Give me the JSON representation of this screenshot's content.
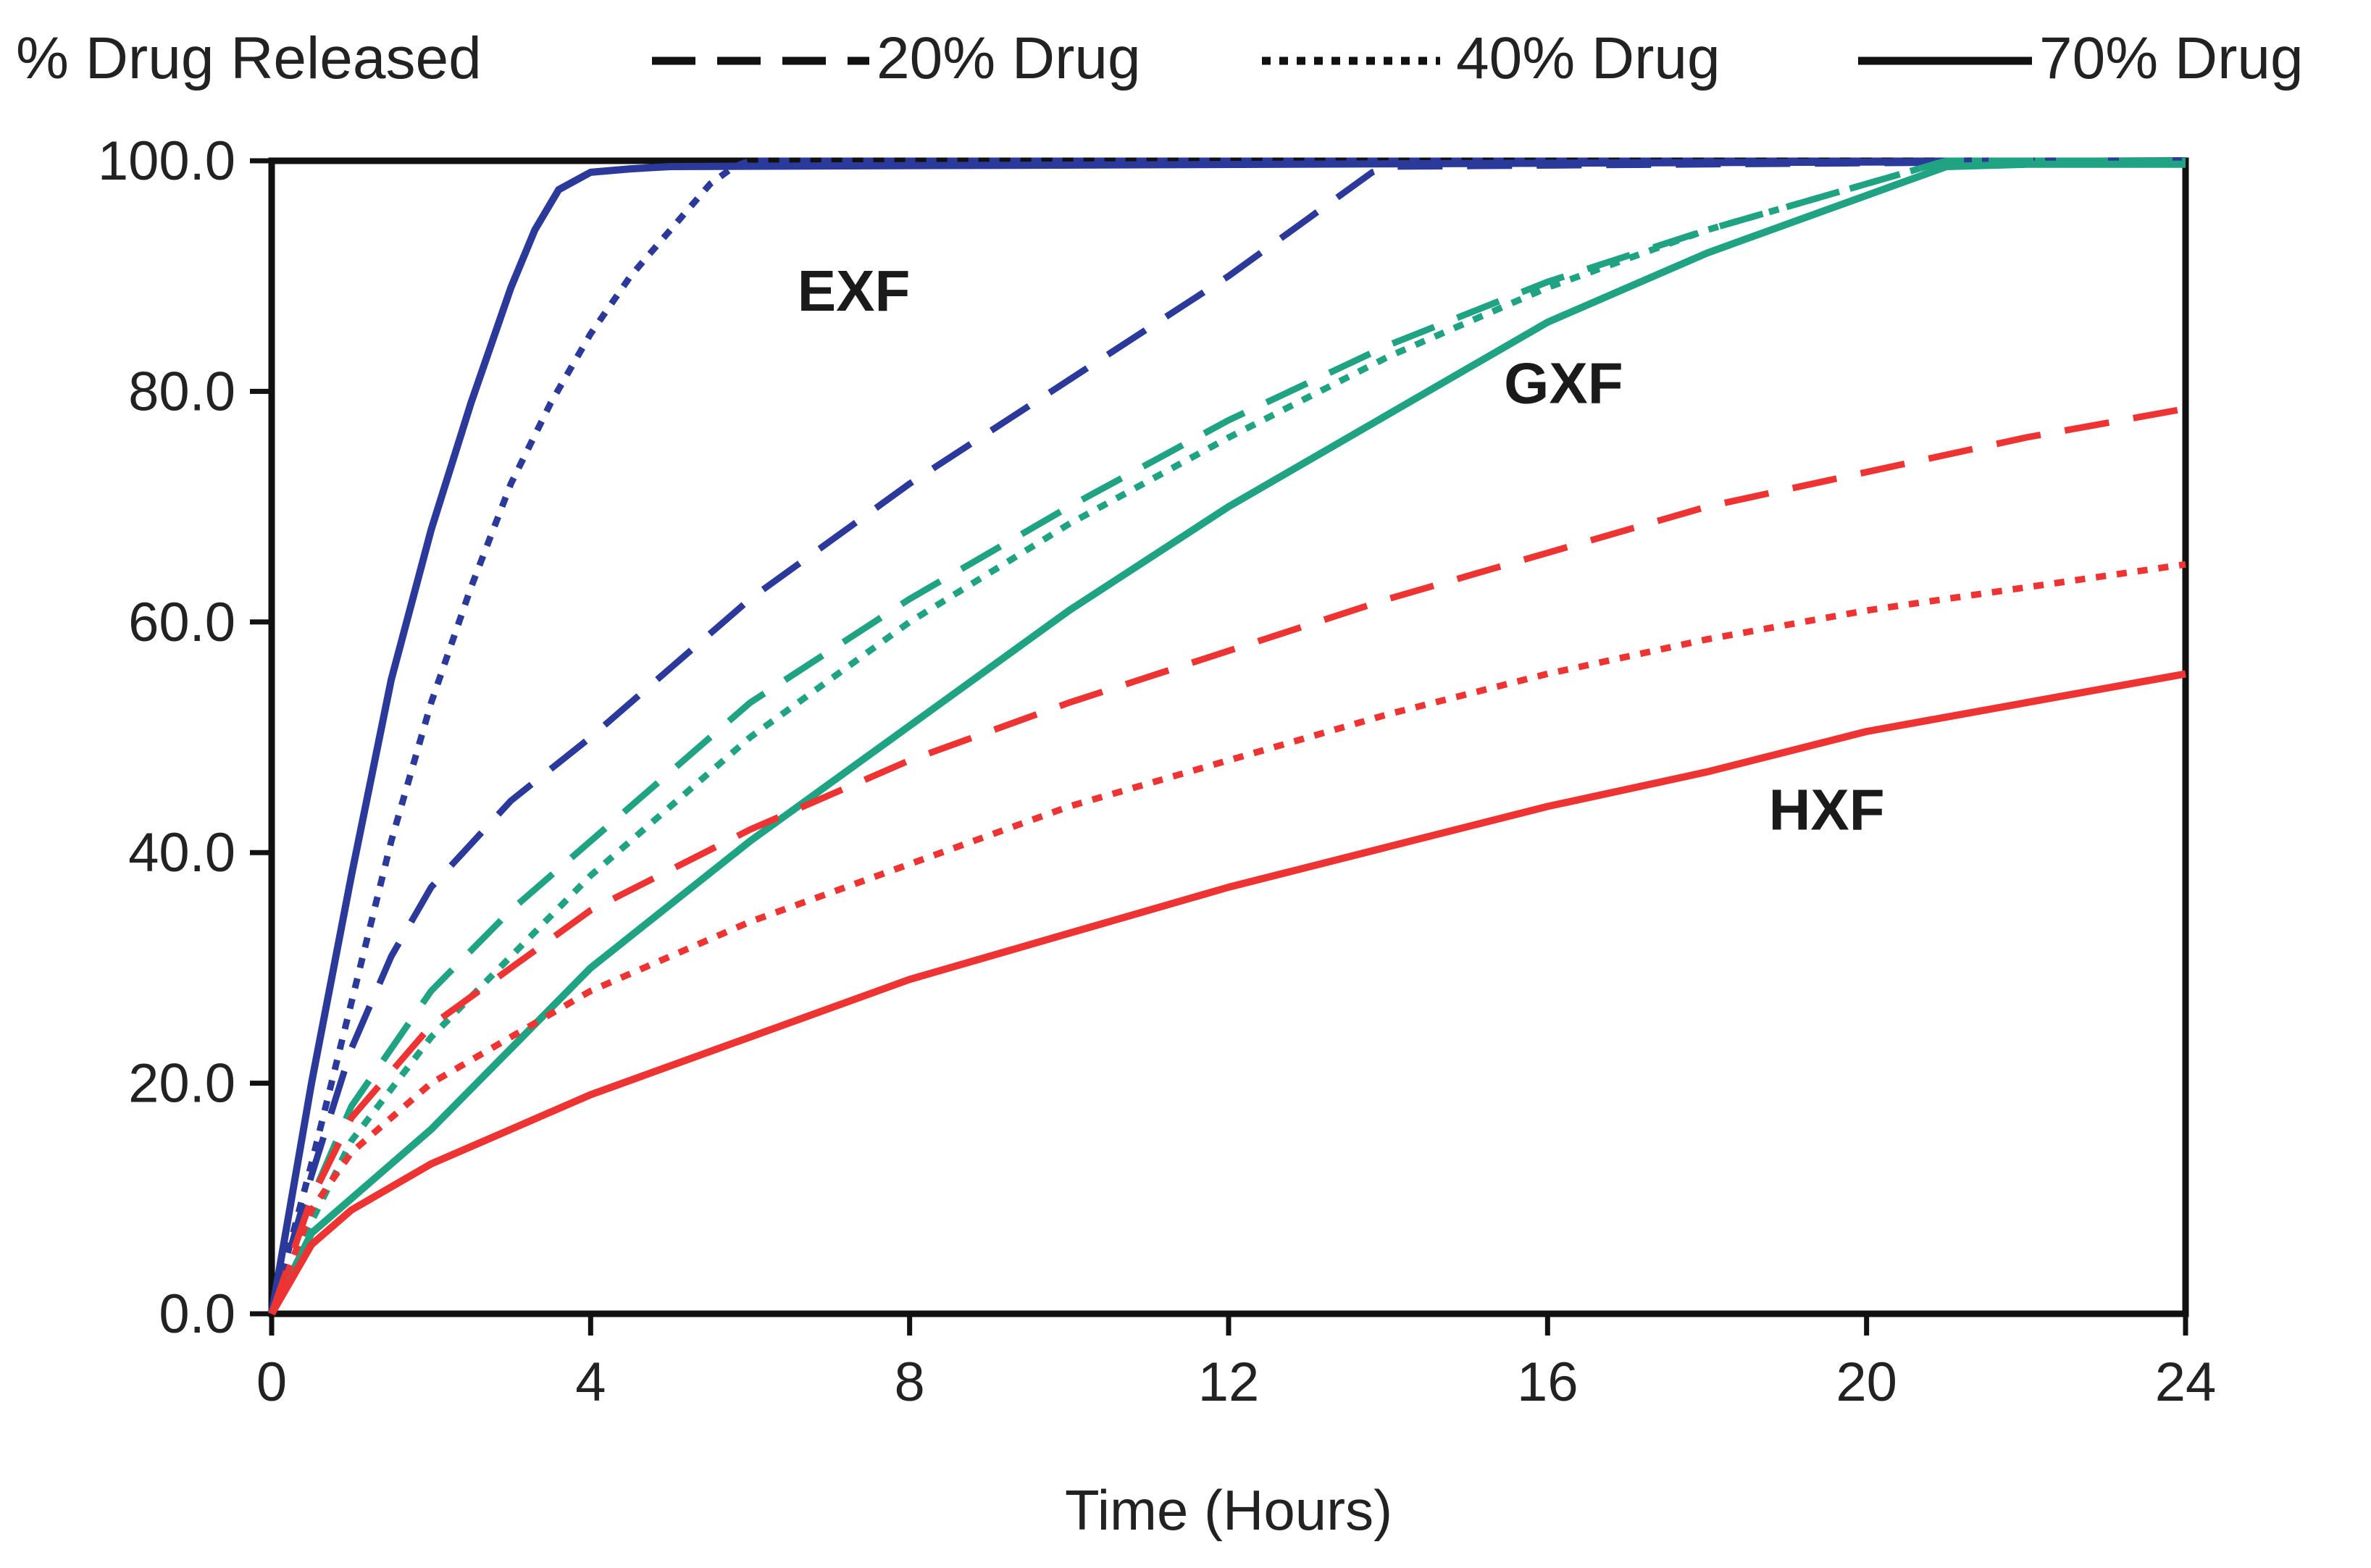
{
  "chart_data": {
    "type": "line",
    "title": "",
    "ylabel": "% Drug Released",
    "xlabel": "Time (Hours)",
    "xlim": [
      0,
      24
    ],
    "ylim": [
      0,
      100
    ],
    "xticks": [
      0,
      4,
      8,
      12,
      16,
      20,
      24
    ],
    "xtick_labels": [
      "0",
      "4",
      "8",
      "12",
      "16",
      "20",
      "24"
    ],
    "yticks": [
      0,
      20,
      40,
      60,
      80,
      100
    ],
    "ytick_labels": [
      "0.0",
      "20.0",
      "40.0",
      "60.0",
      "80.0",
      "100.0"
    ],
    "grid": false,
    "legend": [
      {
        "label": "20% Drug",
        "style": "dashed"
      },
      {
        "label": "40% Drug",
        "style": "dotted"
      },
      {
        "label": "70% Drug",
        "style": "solid"
      }
    ],
    "annotations": [
      {
        "text": "EXF",
        "x": 7.3,
        "y": 87
      },
      {
        "text": "GXF",
        "x": 16.2,
        "y": 79
      },
      {
        "text": "HXF",
        "x": 19.5,
        "y": 42
      }
    ],
    "series": [
      {
        "name": "EXF 20% Drug",
        "group": "EXF",
        "style": "dashed",
        "color": "#2b3a9a",
        "x": [
          0,
          0.5,
          1,
          1.5,
          2,
          3,
          4,
          5,
          6,
          7,
          8,
          9,
          10,
          11,
          12,
          13,
          13.8,
          14,
          24
        ],
        "y": [
          0,
          12,
          23,
          31,
          37,
          44.5,
          50,
          56,
          62,
          67,
          72,
          76.5,
          81,
          85.5,
          90,
          95,
          99,
          99.5,
          100
        ]
      },
      {
        "name": "EXF 40% Drug",
        "group": "EXF",
        "style": "dotted",
        "color": "#2b3a9a",
        "x": [
          0,
          0.5,
          1,
          1.5,
          2,
          2.5,
          3,
          3.5,
          4,
          4.5,
          5,
          5.5,
          5.8,
          6,
          24
        ],
        "y": [
          0,
          13,
          27,
          41,
          53,
          63,
          72,
          79,
          85,
          90,
          94,
          98,
          99.5,
          100,
          100
        ]
      },
      {
        "name": "EXF 70% Drug",
        "group": "EXF",
        "style": "solid",
        "color": "#2b3a9a",
        "x": [
          0,
          0.5,
          1,
          1.5,
          2,
          2.5,
          3,
          3.3,
          3.6,
          4,
          4.5,
          5,
          24
        ],
        "y": [
          0,
          20,
          38,
          55,
          68,
          79,
          89,
          94,
          97.5,
          99,
          99.3,
          99.5,
          100
        ]
      },
      {
        "name": "GXF 20% Drug",
        "group": "GXF",
        "style": "dashed",
        "color": "#1fa382",
        "x": [
          0,
          0.5,
          1,
          2,
          3,
          4,
          6,
          8,
          10,
          12,
          14,
          16,
          18,
          20,
          21,
          22,
          24
        ],
        "y": [
          0,
          10,
          18,
          28,
          35,
          41,
          53,
          62,
          70,
          77.5,
          84,
          89.5,
          94,
          98,
          100,
          100,
          100
        ]
      },
      {
        "name": "GXF 40% Drug",
        "group": "GXF",
        "style": "dotted",
        "color": "#1fa382",
        "x": [
          0,
          0.5,
          1,
          2,
          3,
          4,
          6,
          8,
          10,
          12,
          14,
          16,
          18,
          20,
          21,
          22,
          24
        ],
        "y": [
          0,
          8,
          15,
          24,
          31,
          38,
          50,
          60,
          68.5,
          76,
          83,
          89,
          94,
          98,
          100,
          100,
          100
        ]
      },
      {
        "name": "GXF 70% Drug",
        "group": "GXF",
        "style": "solid",
        "color": "#1fa382",
        "x": [
          0,
          0.5,
          1,
          2,
          3,
          4,
          6,
          8,
          10,
          12,
          14,
          16,
          18,
          20,
          21,
          22,
          24
        ],
        "y": [
          0,
          7,
          10,
          16,
          23,
          30,
          41,
          51,
          61,
          70,
          78,
          86,
          92,
          97,
          99.5,
          99.7,
          99.7
        ]
      },
      {
        "name": "HXF 20% Drug",
        "group": "HXF",
        "style": "dashed",
        "color": "#ee3333",
        "x": [
          0,
          0.5,
          1,
          2,
          3,
          4,
          6,
          8,
          10,
          12,
          14,
          16,
          18,
          20,
          22,
          24
        ],
        "y": [
          0,
          10,
          17,
          25,
          30,
          35,
          42,
          48,
          53,
          57.5,
          62,
          66,
          70,
          73,
          76,
          78.5
        ]
      },
      {
        "name": "HXF 40% Drug",
        "group": "HXF",
        "style": "dotted",
        "color": "#ee3333",
        "x": [
          0,
          0.5,
          1,
          2,
          3,
          4,
          6,
          8,
          10,
          12,
          14,
          16,
          18,
          20,
          22,
          24
        ],
        "y": [
          0,
          9,
          14,
          20,
          24,
          28,
          34,
          39,
          44,
          48,
          52,
          55.5,
          58.5,
          61,
          63,
          65
        ]
      },
      {
        "name": "HXF 70% Drug",
        "group": "HXF",
        "style": "solid",
        "color": "#ee3333",
        "x": [
          0,
          0.5,
          1,
          2,
          3,
          4,
          6,
          8,
          10,
          12,
          14,
          16,
          18,
          20,
          22,
          24
        ],
        "y": [
          0,
          6,
          9,
          13,
          16,
          19,
          24,
          29,
          33,
          37,
          40.5,
          44,
          47,
          50.5,
          53,
          55.5
        ]
      }
    ]
  }
}
